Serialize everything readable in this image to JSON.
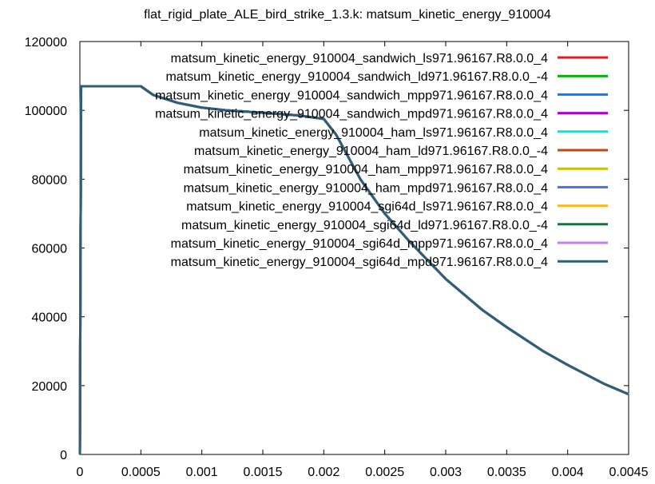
{
  "chart_data": {
    "type": "line",
    "title": "flat_rigid_plate_ALE_bird_strike_1.3.k: matsum_kinetic_energy_910004",
    "xlabel": "",
    "ylabel": "",
    "xlim": [
      0,
      0.0045
    ],
    "ylim": [
      0,
      120000
    ],
    "x_ticks": [
      0,
      0.0005,
      0.001,
      0.0015,
      0.002,
      0.0025,
      0.003,
      0.0035,
      0.004,
      0.0045
    ],
    "x_tick_labels": [
      "0",
      "0.0005",
      "0.001",
      "0.0015",
      "0.002",
      "0.0025",
      "0.003",
      "0.0035",
      "0.004",
      "0.0045"
    ],
    "y_ticks": [
      0,
      20000,
      40000,
      60000,
      80000,
      100000,
      120000
    ],
    "y_tick_labels": [
      "0",
      "20000",
      "40000",
      "60000",
      "80000",
      "100000",
      "120000"
    ],
    "grid": false,
    "legend_position": "top-right",
    "x": [
      0,
      1e-05,
      0.0005,
      0.0006,
      0.0008,
      0.001,
      0.0012,
      0.0015,
      0.0018,
      0.002,
      0.0021,
      0.0022,
      0.0023,
      0.0025,
      0.0027,
      0.003,
      0.0033,
      0.0035,
      0.0038,
      0.004,
      0.0043,
      0.0045
    ],
    "series": [
      {
        "name": "matsum_kinetic_energy_910004_sandwich_ls971.96167.R8.0.0_4",
        "color": "#e41a1c",
        "values": [
          0,
          107000,
          107000,
          104500,
          102200,
          100800,
          100000,
          99300,
          98500,
          97500,
          93000,
          86500,
          80000,
          70000,
          62000,
          51000,
          42000,
          37000,
          30000,
          26000,
          20500,
          17500
        ]
      },
      {
        "name": "matsum_kinetic_energy_910004_sandwich_ld971.96167.R8.0.0_-4",
        "color": "#00b000",
        "values": [
          0,
          107000,
          107000,
          104500,
          102200,
          100800,
          100000,
          99300,
          98500,
          97500,
          93000,
          86500,
          80000,
          70000,
          62000,
          51000,
          42000,
          37000,
          30000,
          26000,
          20500,
          17500
        ]
      },
      {
        "name": "matsum_kinetic_energy_910004_sandwich_mpp971.96167.R8.0.0_4",
        "color": "#0a7cf0",
        "values": [
          0,
          107000,
          107000,
          104500,
          102200,
          100800,
          100000,
          99300,
          98500,
          97500,
          93000,
          86500,
          80000,
          70000,
          62000,
          51000,
          42000,
          37000,
          30000,
          26000,
          20500,
          17500
        ]
      },
      {
        "name": "matsum_kinetic_energy_910004_sandwich_mpd971.96167.R8.0.0_4",
        "color": "#b000d8",
        "values": [
          0,
          107000,
          107000,
          104500,
          102200,
          100800,
          100000,
          99300,
          98500,
          97500,
          93000,
          86500,
          80000,
          70000,
          62000,
          51000,
          42000,
          37000,
          30000,
          26000,
          20500,
          17500
        ]
      },
      {
        "name": "matsum_kinetic_energy_910004_ham_ls971.96167.R8.0.0_4",
        "color": "#00e6e6",
        "values": [
          0,
          107000,
          107000,
          104500,
          102200,
          100800,
          100000,
          99300,
          98500,
          97500,
          93000,
          86500,
          80000,
          70000,
          62000,
          51000,
          42000,
          37000,
          30000,
          26000,
          20500,
          17500
        ]
      },
      {
        "name": "matsum_kinetic_energy_910004_ham_ld971.96167.R8.0.0_-4",
        "color": "#c0461e",
        "values": [
          0,
          107000,
          107000,
          104500,
          102200,
          100800,
          100000,
          99300,
          98500,
          97500,
          93000,
          86500,
          80000,
          70000,
          62000,
          51000,
          42000,
          37000,
          30000,
          26000,
          20500,
          17500
        ]
      },
      {
        "name": "matsum_kinetic_energy_910004_ham_mpp971.96167.R8.0.0_4",
        "color": "#c8c000",
        "values": [
          0,
          107000,
          107000,
          104500,
          102200,
          100800,
          100000,
          99300,
          98500,
          97500,
          93000,
          86500,
          80000,
          70000,
          62000,
          51000,
          42000,
          37000,
          30000,
          26000,
          20500,
          17500
        ]
      },
      {
        "name": "matsum_kinetic_energy_910004_ham_mpd971.96167.R8.0.0_4",
        "color": "#4a70e0",
        "values": [
          0,
          107000,
          107000,
          104500,
          102200,
          100800,
          100000,
          99300,
          98500,
          97500,
          93000,
          86500,
          80000,
          70000,
          62000,
          51000,
          42000,
          37000,
          30000,
          26000,
          20500,
          17500
        ]
      },
      {
        "name": "matsum_kinetic_energy_910004_sgi64d_ls971.96167.R8.0.0_4",
        "color": "#f8b820",
        "values": [
          0,
          107000,
          107000,
          104500,
          102200,
          100800,
          100000,
          99300,
          98500,
          97500,
          93000,
          86500,
          80000,
          70000,
          62000,
          51000,
          42000,
          37000,
          30000,
          26000,
          20500,
          17500
        ]
      },
      {
        "name": "matsum_kinetic_energy_910004_sgi64d_ld971.96167.R8.0.0_-4",
        "color": "#0a7a3c",
        "values": [
          0,
          107000,
          107000,
          104500,
          102200,
          100800,
          100000,
          99300,
          98500,
          97500,
          93000,
          86500,
          80000,
          70000,
          62000,
          51000,
          42000,
          37000,
          30000,
          26000,
          20500,
          17500
        ]
      },
      {
        "name": "matsum_kinetic_energy_910004_sgi64d_mpp971.96167.R8.0.0_4",
        "color": "#c080f0",
        "values": [
          0,
          107000,
          107000,
          104500,
          102200,
          100800,
          100000,
          99300,
          98500,
          97500,
          93000,
          86500,
          80000,
          70000,
          62000,
          51000,
          42000,
          37000,
          30000,
          26000,
          20500,
          17500
        ]
      },
      {
        "name": "matsum_kinetic_energy_910004_sgi64d_mpd971.96167.R8.0.0_4",
        "color": "#2e5e78",
        "values": [
          0,
          107000,
          107000,
          104500,
          102200,
          100800,
          100000,
          99300,
          98500,
          97500,
          93000,
          86500,
          80000,
          70000,
          62000,
          51000,
          42000,
          37000,
          30000,
          26000,
          20500,
          17500
        ]
      }
    ]
  }
}
